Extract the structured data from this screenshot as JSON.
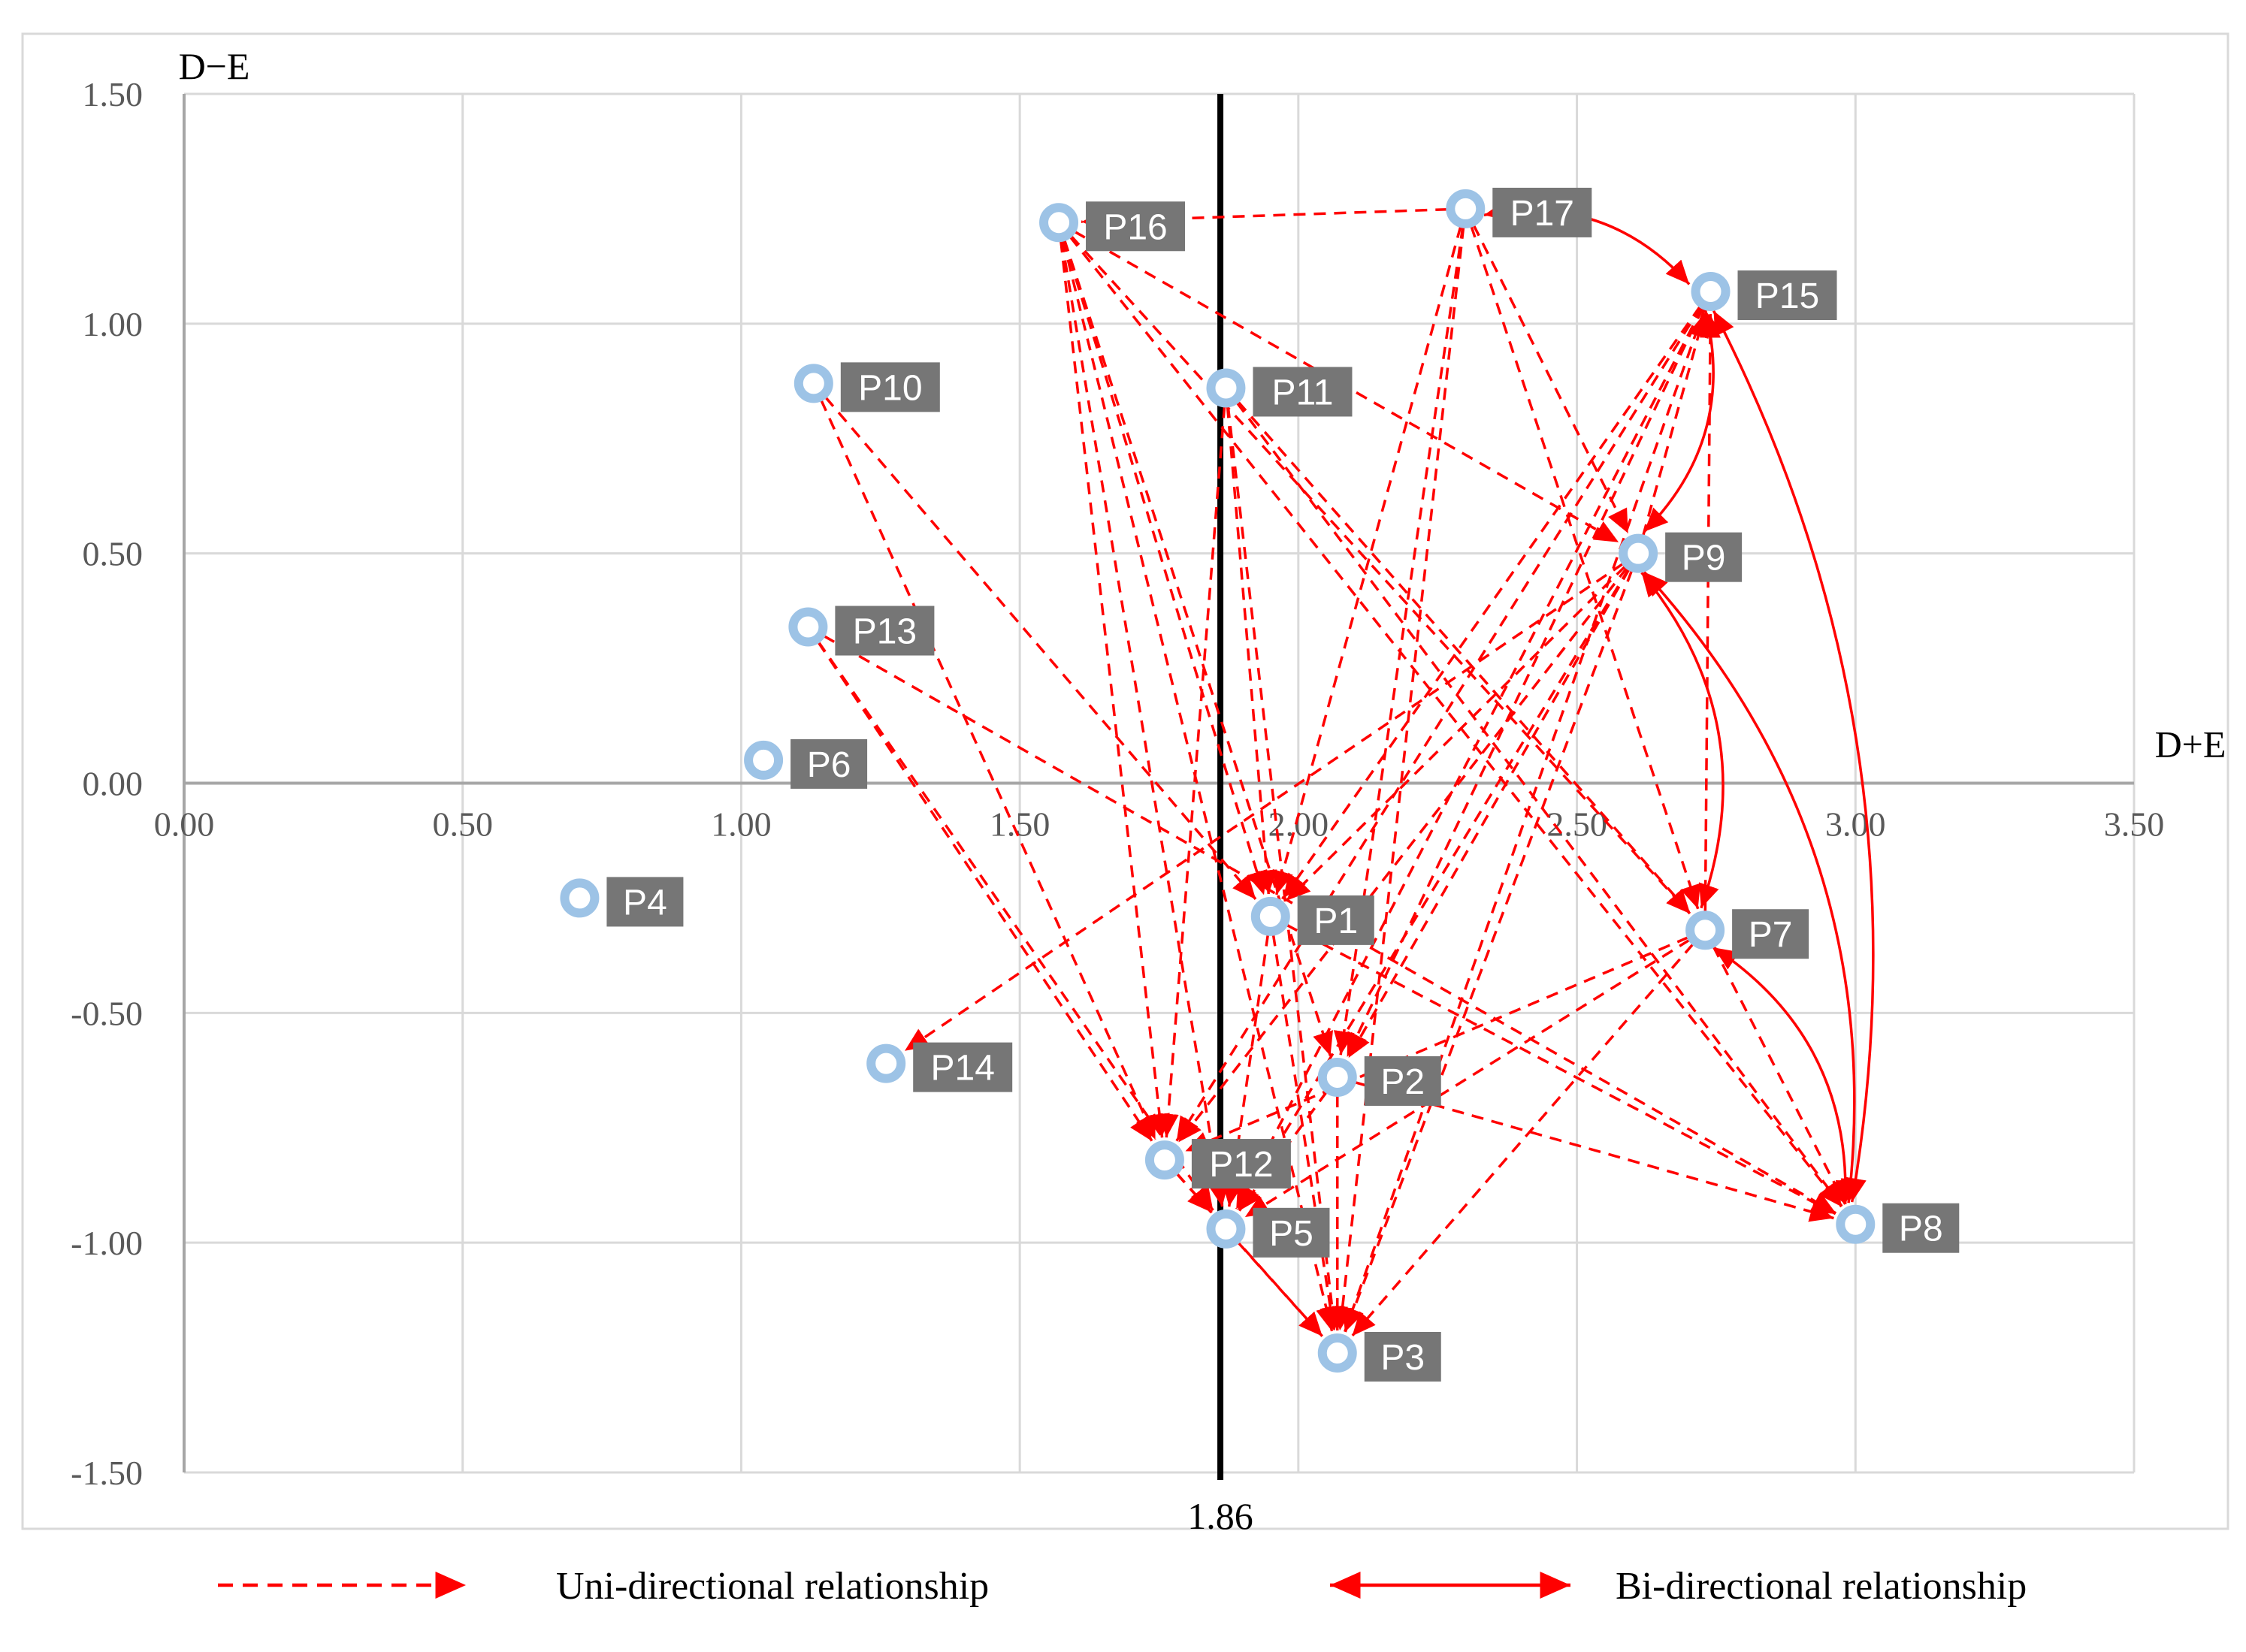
{
  "chart_data": {
    "type": "scatter",
    "title": "",
    "xlabel": "D+E",
    "ylabel": "D−E",
    "xlim": [
      0,
      3.5
    ],
    "ylim": [
      -1.5,
      1.5
    ],
    "x_ticks": [
      "0.00",
      "0.50",
      "1.00",
      "1.50",
      "2.00",
      "2.50",
      "3.00",
      "3.50"
    ],
    "y_ticks": [
      "1.50",
      "1.00",
      "0.50",
      "0.00",
      "-0.50",
      "-1.00",
      "-1.50"
    ],
    "grid": true,
    "reference_line": {
      "x": 1.86,
      "label": "1.86"
    },
    "points": [
      {
        "label": "P1",
        "x": 1.95,
        "y": -0.29
      },
      {
        "label": "P2",
        "x": 2.07,
        "y": -0.64
      },
      {
        "label": "P3",
        "x": 2.07,
        "y": -1.24
      },
      {
        "label": "P4",
        "x": 0.71,
        "y": -0.25
      },
      {
        "label": "P5",
        "x": 1.87,
        "y": -0.97
      },
      {
        "label": "P6",
        "x": 1.04,
        "y": 0.05
      },
      {
        "label": "P7",
        "x": 2.73,
        "y": -0.32
      },
      {
        "label": "P8",
        "x": 3.0,
        "y": -0.96
      },
      {
        "label": "P9",
        "x": 2.61,
        "y": 0.5
      },
      {
        "label": "P10",
        "x": 1.13,
        "y": 0.87
      },
      {
        "label": "P11",
        "x": 1.87,
        "y": 0.86
      },
      {
        "label": "P12",
        "x": 1.76,
        "y": -0.82
      },
      {
        "label": "P13",
        "x": 1.12,
        "y": 0.34
      },
      {
        "label": "P14",
        "x": 1.26,
        "y": -0.61
      },
      {
        "label": "P15",
        "x": 2.74,
        "y": 1.07
      },
      {
        "label": "P16",
        "x": 1.57,
        "y": 1.22
      },
      {
        "label": "P17",
        "x": 2.3,
        "y": 1.25
      }
    ],
    "unidirectional_relationships": [
      [
        "P17",
        "P16"
      ],
      [
        "P17",
        "P1"
      ],
      [
        "P17",
        "P2"
      ],
      [
        "P17",
        "P3"
      ],
      [
        "P17",
        "P9"
      ],
      [
        "P17",
        "P7"
      ],
      [
        "P16",
        "P1"
      ],
      [
        "P16",
        "P2"
      ],
      [
        "P16",
        "P3"
      ],
      [
        "P16",
        "P5"
      ],
      [
        "P16",
        "P12"
      ],
      [
        "P16",
        "P7"
      ],
      [
        "P16",
        "P8"
      ],
      [
        "P16",
        "P9"
      ],
      [
        "P11",
        "P1"
      ],
      [
        "P11",
        "P3"
      ],
      [
        "P11",
        "P8"
      ],
      [
        "P11",
        "P7"
      ],
      [
        "P11",
        "P12"
      ],
      [
        "P10",
        "P12"
      ],
      [
        "P10",
        "P1"
      ],
      [
        "P13",
        "P5"
      ],
      [
        "P13",
        "P12"
      ],
      [
        "P13",
        "P8"
      ],
      [
        "P15",
        "P1"
      ],
      [
        "P15",
        "P2"
      ],
      [
        "P15",
        "P3"
      ],
      [
        "P15",
        "P5"
      ],
      [
        "P15",
        "P12"
      ],
      [
        "P9",
        "P14"
      ],
      [
        "P9",
        "P1"
      ],
      [
        "P9",
        "P2"
      ],
      [
        "P9",
        "P3"
      ],
      [
        "P9",
        "P5"
      ],
      [
        "P9",
        "P12"
      ],
      [
        "P9",
        "P15"
      ],
      [
        "P7",
        "P15"
      ],
      [
        "P7",
        "P8"
      ],
      [
        "P7",
        "P3"
      ],
      [
        "P7",
        "P5"
      ],
      [
        "P7",
        "P12"
      ],
      [
        "P1",
        "P3"
      ],
      [
        "P1",
        "P5"
      ],
      [
        "P1",
        "P8"
      ],
      [
        "P2",
        "P3"
      ],
      [
        "P2",
        "P5"
      ],
      [
        "P2",
        "P8"
      ],
      [
        "P12",
        "P3"
      ],
      [
        "P12",
        "P5"
      ],
      [
        "P5",
        "P3"
      ]
    ],
    "bidirectional_relationships": [
      [
        "P17",
        "P15"
      ],
      [
        "P15",
        "P9"
      ],
      [
        "P15",
        "P8"
      ],
      [
        "P9",
        "P8"
      ],
      [
        "P9",
        "P7"
      ],
      [
        "P7",
        "P8"
      ]
    ],
    "legend": {
      "placement": "bottom",
      "uni_label": "Uni-directional relationship",
      "bi_label": "Bi-directional relationship"
    },
    "colors": {
      "marker": "#9dc3e6",
      "label_box": "#767676",
      "relationship": "#ff0000",
      "reference_line": "#000000",
      "grid": "#d9d9d9"
    }
  }
}
